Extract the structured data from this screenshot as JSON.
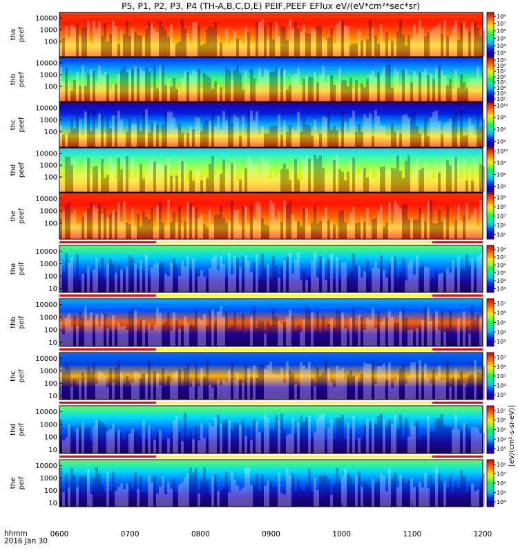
{
  "chart_data": {
    "type": "heatmap",
    "title": "P5, P1, P2, P3, P4 (TH-A,B,C,D,E) PEIF,PEEF EFlux eV/(eV*cm²*sec*sr)",
    "x_axis": {
      "label_line1": "hhmm",
      "label_line2": "2016 Jan 30",
      "range": [
        "0600",
        "1200"
      ],
      "ticks": [
        "0600",
        "0700",
        "0800",
        "0900",
        "1000",
        "1100",
        "1200"
      ]
    },
    "y_axis": {
      "scale": "log",
      "range_eV": [
        5,
        30000
      ],
      "ticks": [
        "10",
        "100",
        "1000",
        "10000"
      ]
    },
    "colorbar_unit_label": "[eV/(cm²-s-sr-eV)]",
    "colorbar_scale": "log",
    "panels": [
      {
        "id": "tha_peef",
        "line1": "tha",
        "line2": "peef",
        "ticks": [
          "100",
          "1000",
          "10000"
        ],
        "cbar_ticks": [
          "10³",
          "10⁴",
          "10⁵",
          "10⁶",
          "10⁷",
          "10⁸"
        ],
        "cbar_range_log": [
          2.5,
          8.5
        ]
      },
      {
        "id": "thb_peef",
        "line1": "thb",
        "line2": "peef",
        "ticks": [
          "100",
          "1000",
          "10000"
        ],
        "cbar_ticks": [
          "10²",
          "10³",
          "10⁴",
          "10⁵",
          "10⁶",
          "10⁷",
          "10⁸",
          "10⁹"
        ],
        "cbar_range_log": [
          1.5,
          9.5
        ]
      },
      {
        "id": "thc_peef",
        "line1": "thc",
        "line2": "peef",
        "ticks": [
          "100",
          "1000",
          "10000"
        ],
        "cbar_ticks": [
          "10⁴",
          "10⁶",
          "10⁸",
          "10¹⁰"
        ],
        "cbar_range_log": [
          3.0,
          10.5
        ]
      },
      {
        "id": "thd_peef",
        "line1": "thd",
        "line2": "peef",
        "ticks": [
          "100",
          "1000",
          "10000"
        ],
        "cbar_ticks": [
          "10⁴",
          "10⁶",
          "10⁸",
          "10¹⁰"
        ],
        "cbar_range_log": [
          3.0,
          10.5
        ]
      },
      {
        "id": "the_peef",
        "line1": "the",
        "line2": "peef",
        "ticks": [
          "100",
          "1000",
          "10000"
        ],
        "cbar_ticks": [
          "10⁵",
          "10⁶",
          "10⁷",
          "10⁸",
          "10⁹"
        ],
        "cbar_range_log": [
          4.5,
          9.5
        ]
      },
      {
        "id": "tha_peif",
        "line1": "tha",
        "line2": "peif",
        "ticks": [
          "10",
          "100",
          "1000",
          "10000"
        ],
        "cbar_ticks": [
          "10³",
          "10⁴",
          "10⁵",
          "10⁶",
          "10⁷",
          "10⁸"
        ],
        "cbar_range_log": [
          2.5,
          8.5
        ]
      },
      {
        "id": "thb_peif",
        "line1": "thb",
        "line2": "peif",
        "ticks": [
          "10",
          "100",
          "1000",
          "10000"
        ],
        "cbar_ticks": [
          "10³",
          "10⁴",
          "10⁵",
          "10⁶",
          "10⁷"
        ],
        "cbar_range_log": [
          2.5,
          7.5
        ]
      },
      {
        "id": "thc_peif",
        "line1": "thc",
        "line2": "peif",
        "ticks": [
          "10",
          "100",
          "1000",
          "10000"
        ],
        "cbar_ticks": [
          "10³",
          "10⁴",
          "10⁵",
          "10⁶",
          "10⁷"
        ],
        "cbar_range_log": [
          2.5,
          7.5
        ]
      },
      {
        "id": "thd_peif",
        "line1": "thd",
        "line2": "peif",
        "ticks": [
          "10",
          "100",
          "1000",
          "10000"
        ],
        "cbar_ticks": [
          "10³",
          "10⁴",
          "10⁵",
          "10⁶",
          "10⁷"
        ],
        "cbar_range_log": [
          2.5,
          7.5
        ]
      },
      {
        "id": "the_peif",
        "line1": "the",
        "line2": "peif",
        "ticks": [
          "10",
          "100",
          "1000",
          "10000"
        ],
        "cbar_ticks": [
          "10⁴",
          "10⁵",
          "10⁶",
          "10⁷",
          "10⁸"
        ],
        "cbar_range_log": [
          3.5,
          8.5
        ]
      }
    ]
  }
}
